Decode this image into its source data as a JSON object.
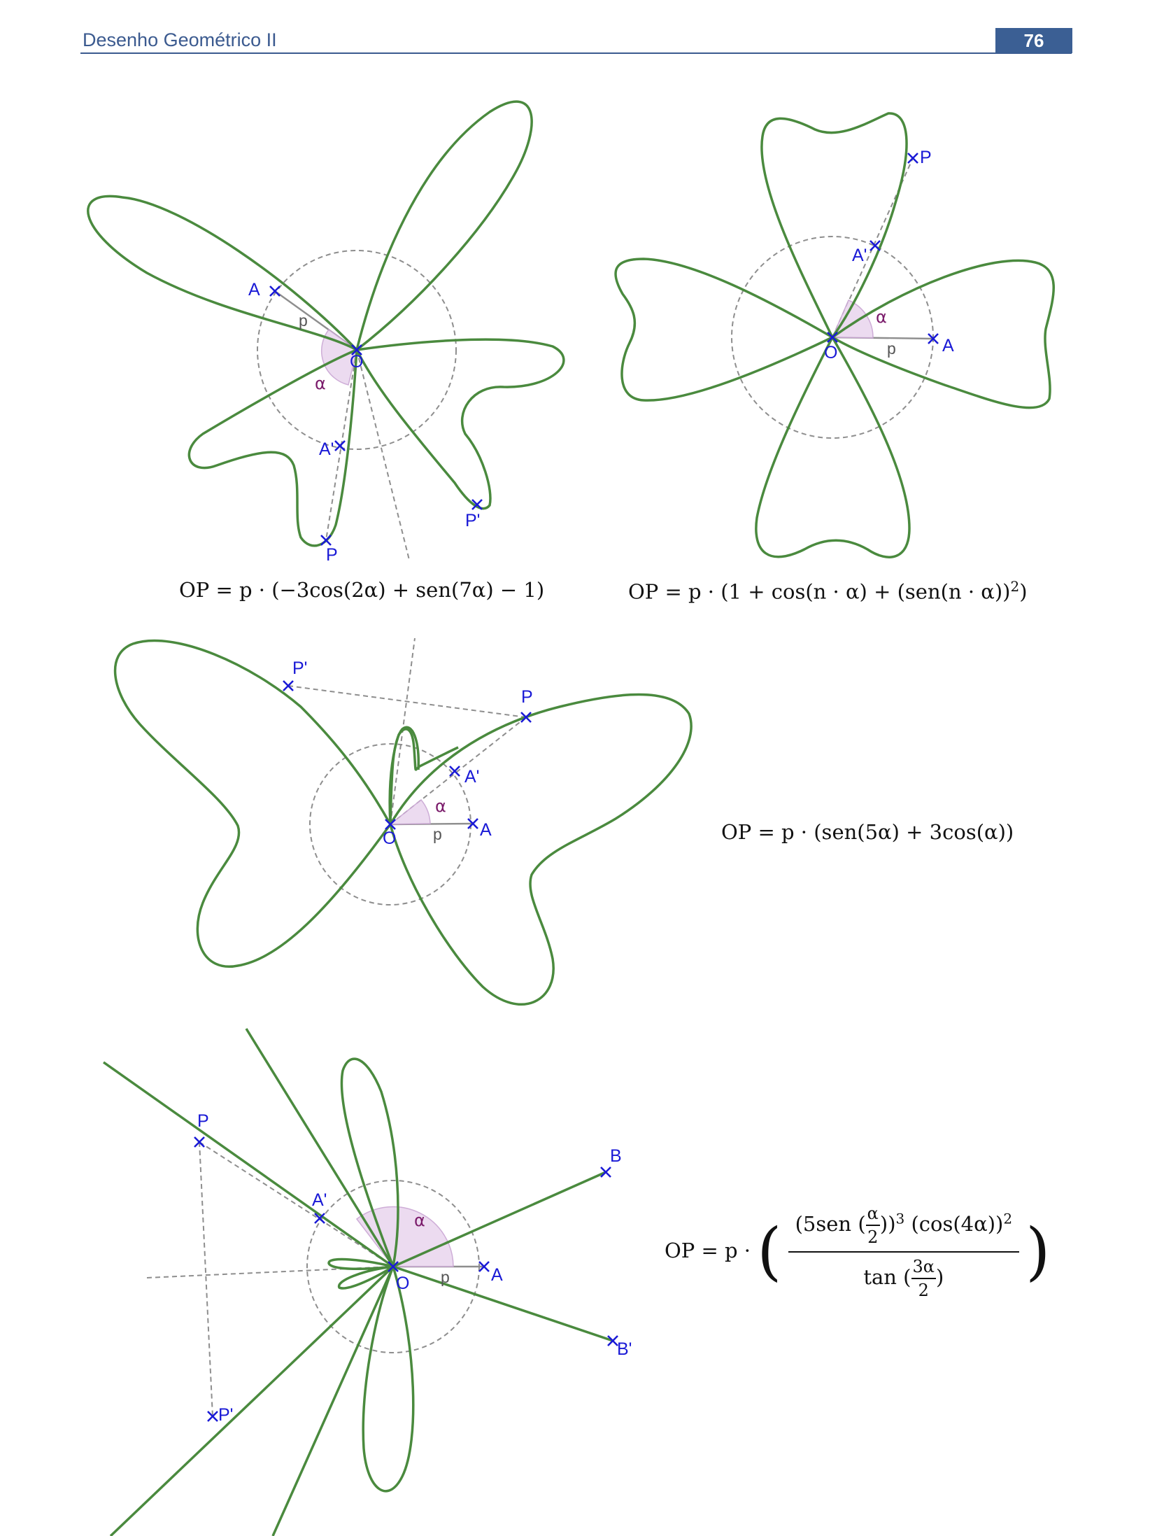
{
  "header": {
    "title": "Desenho Geométrico II",
    "page_number": "76"
  },
  "colors": {
    "curve": "#4a8a3e",
    "points": "#1a1ad6",
    "angle": "#7a1a6a",
    "accent": "#3b5f94"
  },
  "figures": [
    {
      "equation": "OP = p · (−3cos(2α) + sen(7α) − 1)",
      "labels": {
        "A": "A",
        "A2": "A'",
        "O": "O",
        "P": "P",
        "P2": "P'",
        "p": "p",
        "alpha": "α"
      }
    },
    {
      "equation": "OP = p · (1 + cos(n · α) + (sen(n · α))",
      "exponent": "2",
      "close": ")",
      "labels": {
        "A": "A",
        "A2": "A'",
        "O": "O",
        "P": "P",
        "p": "p",
        "alpha": "α"
      }
    },
    {
      "equation": "OP = p · (sen(5α) + 3cos(α))",
      "labels": {
        "A": "A",
        "A2": "A'",
        "O": "O",
        "P": "P",
        "P2": "P'",
        "p": "p",
        "alpha": "α"
      }
    },
    {
      "equation_prefix": "OP = p ·",
      "numerator_a": "5sen",
      "alpha_num": "α",
      "two": "2",
      "cube": "3",
      "numerator_b": "(cos(4α))",
      "square": "2",
      "denominator": "tan",
      "three_alpha": "3α",
      "labels": {
        "A": "A",
        "A2": "A'",
        "O": "O",
        "P": "P",
        "P2": "P'",
        "B": "B",
        "B2": "B'",
        "p": "p",
        "alpha": "α"
      }
    }
  ]
}
